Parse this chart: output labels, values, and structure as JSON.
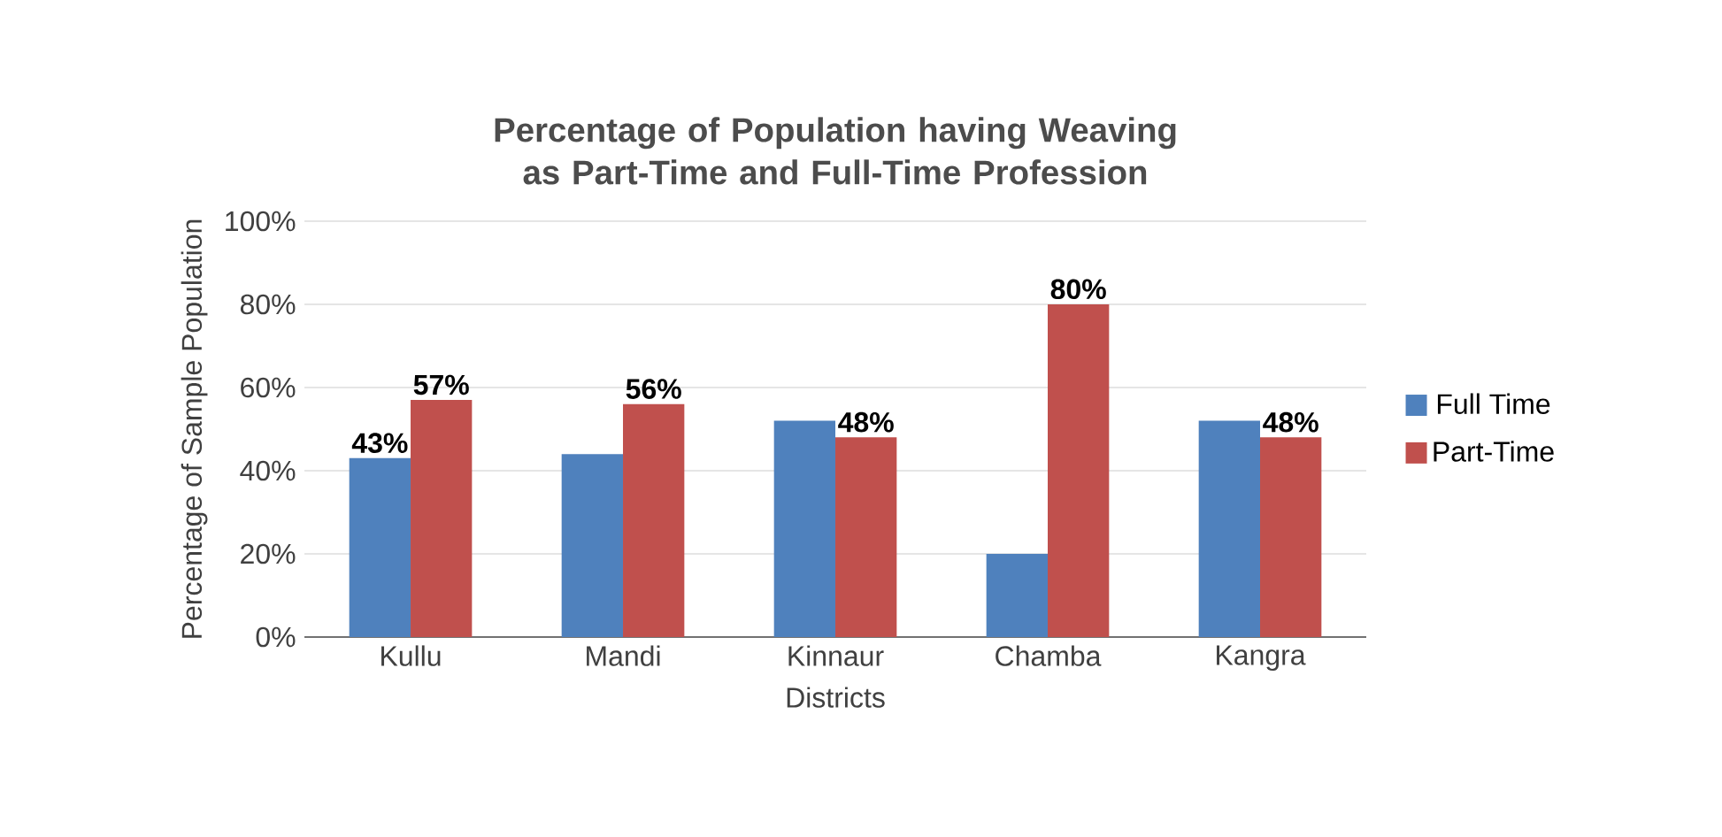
{
  "chart_data": {
    "type": "bar",
    "title": "Percentage of Population having Weaving as Part-Time and Full-Time Profession",
    "xlabel": "Districts",
    "ylabel": "Percentage of Sample Population",
    "categories": [
      "Kullu",
      "Mandi",
      "Kinnaur",
      "Chamba",
      "Kangra"
    ],
    "series": [
      {
        "name": "Full Time",
        "color": "#4f81bd",
        "values": [
          43,
          44,
          52,
          20,
          52
        ],
        "value_labels": [
          "43%",
          null,
          null,
          null,
          null
        ]
      },
      {
        "name": "Part-Time",
        "color": "#c0504d",
        "values": [
          57,
          56,
          48,
          80,
          48
        ],
        "value_labels": [
          "57%",
          "56%",
          "48%",
          "80%",
          "48%"
        ]
      }
    ],
    "ylim": [
      0,
      100
    ],
    "yticks": [
      {
        "value": 0,
        "label": "0%"
      },
      {
        "value": 20,
        "label": "20%"
      },
      {
        "value": 40,
        "label": "40%"
      },
      {
        "value": 60,
        "label": "60%"
      },
      {
        "value": 80,
        "label": "80%"
      },
      {
        "value": 100,
        "label": "100%"
      }
    ],
    "grid": "y",
    "legend": "right"
  }
}
